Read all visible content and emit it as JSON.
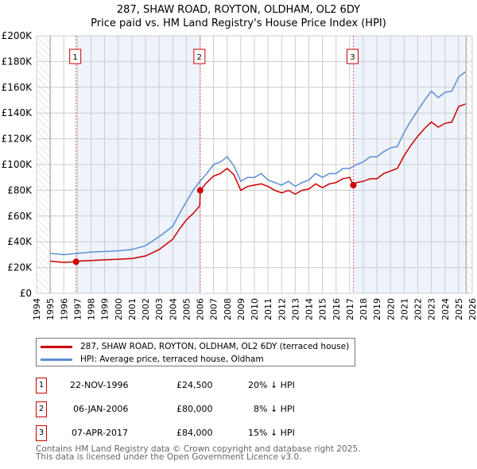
{
  "chart_data": {
    "type": "line",
    "title": "287, SHAW ROAD, ROYTON, OLDHAM, OL2 6DY",
    "subtitle": "Price paid vs. HM Land Registry's House Price Index (HPI)",
    "xlim": [
      1994,
      2026
    ],
    "ylim": [
      0,
      200000
    ],
    "x_ticks": [
      "1994",
      "1995",
      "1996",
      "1997",
      "1998",
      "1999",
      "2000",
      "2001",
      "2002",
      "2003",
      "2004",
      "2005",
      "2006",
      "2007",
      "2008",
      "2009",
      "2010",
      "2011",
      "2012",
      "2013",
      "2014",
      "2015",
      "2016",
      "2017",
      "2018",
      "2019",
      "2020",
      "2021",
      "2022",
      "2023",
      "2024",
      "2025",
      "2026"
    ],
    "y_ticks": [
      {
        "v": 0,
        "l": "£0"
      },
      {
        "v": 20000,
        "l": "£20K"
      },
      {
        "v": 40000,
        "l": "£40K"
      },
      {
        "v": 60000,
        "l": "£60K"
      },
      {
        "v": 80000,
        "l": "£80K"
      },
      {
        "v": 100000,
        "l": "£100K"
      },
      {
        "v": 120000,
        "l": "£120K"
      },
      {
        "v": 140000,
        "l": "£140K"
      },
      {
        "v": 160000,
        "l": "£160K"
      },
      {
        "v": 180000,
        "l": "£180K"
      },
      {
        "v": 200000,
        "l": "£200K"
      }
    ],
    "grid": true,
    "series": [
      {
        "name": "287, SHAW ROAD, ROYTON, OLDHAM, OL2 6DY (terraced house)",
        "color": "#cc0000",
        "x": [
          1995,
          1996,
          1996.9,
          1997,
          1998,
          1999,
          2000,
          2001,
          2002,
          2003,
          2004,
          2004.5,
          2005,
          2005.5,
          2005.99,
          2006.02,
          2006.5,
          2007,
          2007.5,
          2008,
          2008.5,
          2009,
          2009.5,
          2010,
          2010.5,
          2011,
          2011.5,
          2012,
          2012.5,
          2013,
          2013.5,
          2014,
          2014.5,
          2015,
          2015.5,
          2016,
          2016.5,
          2017,
          2017.27,
          2017.5,
          2018,
          2018.5,
          2019,
          2019.5,
          2020,
          2020.5,
          2021,
          2021.5,
          2022,
          2022.5,
          2023,
          2023.5,
          2024,
          2024.5,
          2025,
          2025.5
        ],
        "y": [
          25,
          24,
          24.5,
          25,
          25.5,
          26,
          26.5,
          27,
          29,
          34,
          42,
          50,
          57,
          62,
          68,
          80,
          86,
          91,
          93,
          97,
          92,
          80,
          83,
          84,
          85,
          83,
          80,
          78,
          80,
          77,
          80,
          81,
          85,
          82,
          85,
          86,
          89,
          90,
          84,
          86,
          87,
          89,
          89,
          93,
          95,
          97,
          107,
          115,
          122,
          128,
          133,
          129,
          132,
          133,
          145,
          147
        ]
      },
      {
        "name": "HPI: Average price, terraced house, Oldham",
        "color": "#5b8fd4",
        "x": [
          1995,
          1996,
          1997,
          1998,
          1999,
          2000,
          2001,
          2002,
          2003,
          2004,
          2004.5,
          2005,
          2005.5,
          2006,
          2006.5,
          2007,
          2007.5,
          2008,
          2008.5,
          2009,
          2009.5,
          2010,
          2010.5,
          2011,
          2011.5,
          2012,
          2012.5,
          2013,
          2013.5,
          2014,
          2014.5,
          2015,
          2015.5,
          2016,
          2016.5,
          2017,
          2017.5,
          2018,
          2018.5,
          2019,
          2019.5,
          2020,
          2020.5,
          2021,
          2021.5,
          2022,
          2022.5,
          2023,
          2023.5,
          2024,
          2024.5,
          2025,
          2025.5
        ],
        "y": [
          31,
          30,
          31,
          32,
          32.5,
          33,
          34,
          37,
          44,
          52,
          62,
          71,
          80,
          87,
          93,
          100,
          102,
          106,
          99,
          87,
          90,
          90,
          93,
          88,
          86,
          84,
          87,
          83,
          86,
          88,
          93,
          90,
          93,
          93,
          97,
          97,
          100,
          102,
          106,
          106,
          110,
          113,
          114,
          125,
          134,
          142,
          150,
          157,
          152,
          156,
          157,
          168,
          172
        ]
      }
    ],
    "sales": [
      {
        "n": "1",
        "x": 1996.9,
        "y": 24500,
        "date": "22-NOV-1996",
        "price": "£24,500",
        "delta": "20% ↓ HPI"
      },
      {
        "n": "2",
        "x": 2006.02,
        "y": 80000,
        "date": "06-JAN-2006",
        "price": "£80,000",
        "delta": "8% ↓ HPI"
      },
      {
        "n": "3",
        "x": 2017.27,
        "y": 84000,
        "date": "07-APR-2017",
        "price": "£84,000",
        "delta": "15% ↓ HPI"
      }
    ],
    "legend_placement": "below"
  },
  "footer": {
    "line1": "Contains HM Land Registry data © Crown copyright and database right 2025.",
    "line2": "This data is licensed under the Open Government Licence v3.0."
  }
}
